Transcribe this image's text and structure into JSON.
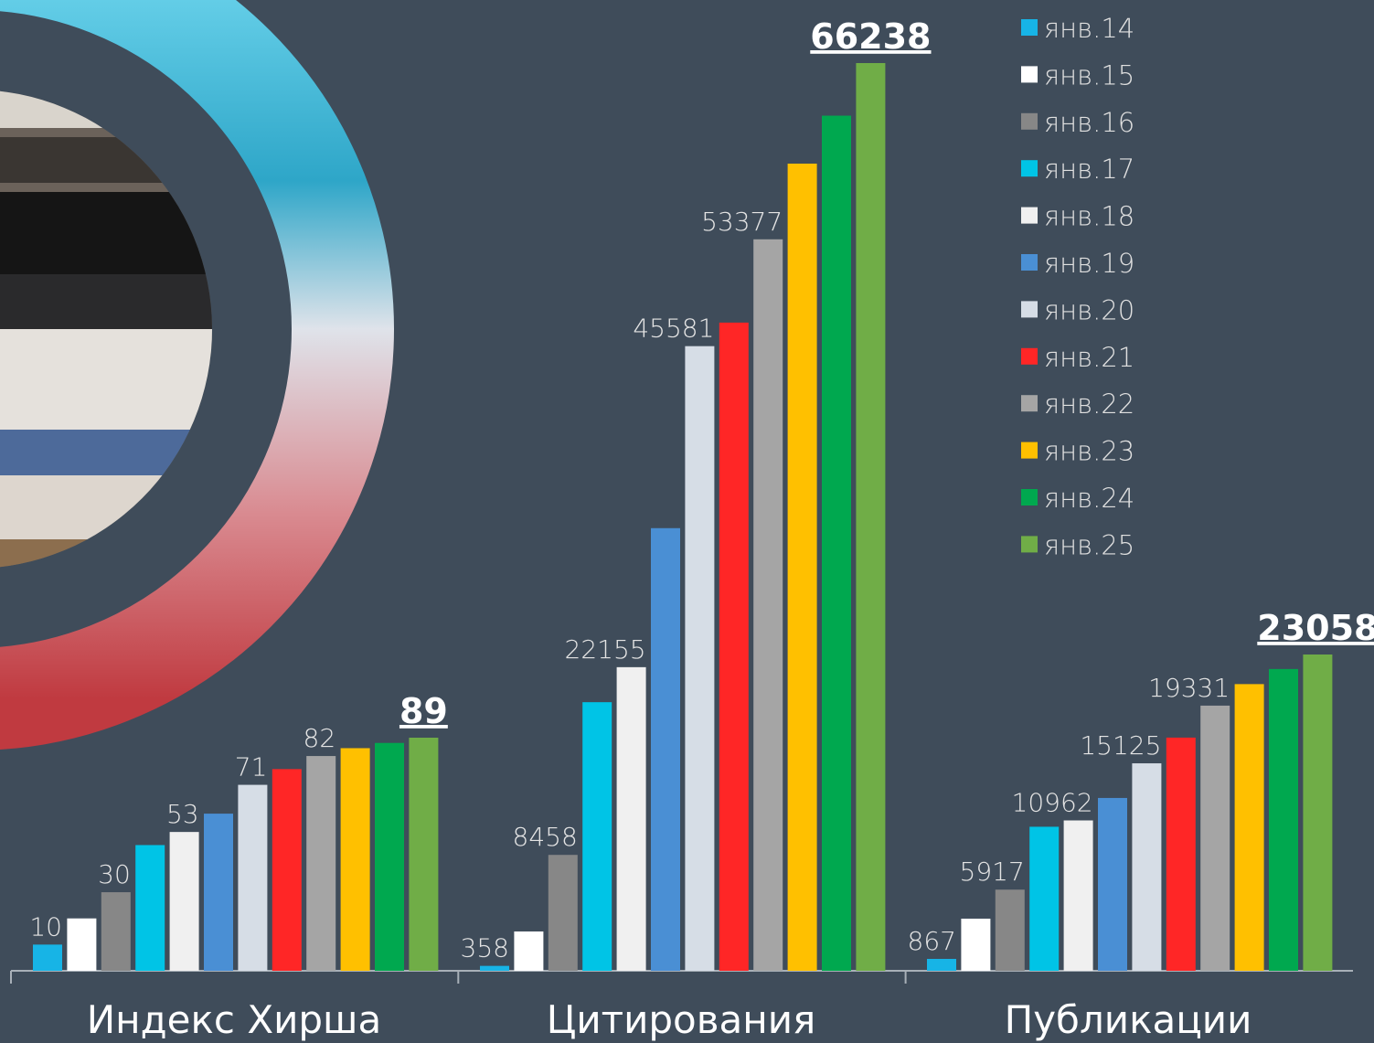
{
  "chart_data": {
    "type": "bar",
    "categories": [
      "Индекс Хирша",
      "Цитирования",
      "Публикации"
    ],
    "series": [
      {
        "name": "янв.14",
        "color": "#17b4e6",
        "values": [
          10,
          358,
          867
        ],
        "value_labels": [
          "10",
          "358",
          "867"
        ]
      },
      {
        "name": "янв.15",
        "color": "#ffffff",
        "values": [
          20,
          2870,
          3800
        ],
        "value_labels": [
          null,
          null,
          null
        ]
      },
      {
        "name": "янв.16",
        "color": "#878787",
        "values": [
          30,
          8458,
          5917
        ],
        "value_labels": [
          "30",
          "8458",
          "5917"
        ]
      },
      {
        "name": "янв.17",
        "color": "#00c4e6",
        "values": [
          48,
          19600,
          10500
        ],
        "value_labels": [
          null,
          null,
          null
        ]
      },
      {
        "name": "янв.18",
        "color": "#f0f0f0",
        "values": [
          53,
          22155,
          10962
        ],
        "value_labels": [
          "53",
          "22155",
          "10962"
        ]
      },
      {
        "name": "янв.19",
        "color": "#4a8fd4",
        "values": [
          60,
          32300,
          12600
        ],
        "value_labels": [
          null,
          null,
          null
        ]
      },
      {
        "name": "янв.20",
        "color": "#d6dde6",
        "values": [
          71,
          45581,
          15125
        ],
        "value_labels": [
          "71",
          "45581",
          "15125"
        ]
      },
      {
        "name": "янв.21",
        "color": "#ff2626",
        "values": [
          77,
          47300,
          17000
        ],
        "value_labels": [
          null,
          null,
          null
        ]
      },
      {
        "name": "янв.22",
        "color": "#a5a5a5",
        "values": [
          82,
          53377,
          19331
        ],
        "value_labels": [
          "82",
          "53377",
          "19331"
        ]
      },
      {
        "name": "янв.23",
        "color": "#ffc000",
        "values": [
          85,
          58900,
          20900
        ],
        "value_labels": [
          null,
          null,
          null
        ]
      },
      {
        "name": "янв.24",
        "color": "#00a84f",
        "values": [
          87,
          62400,
          22000
        ],
        "value_labels": [
          null,
          null,
          null
        ]
      },
      {
        "name": "янв.25",
        "color": "#70ad47",
        "values": [
          89,
          66238,
          23058
        ],
        "value_labels": [
          "89",
          "66238",
          "23058"
        ]
      }
    ]
  }
}
